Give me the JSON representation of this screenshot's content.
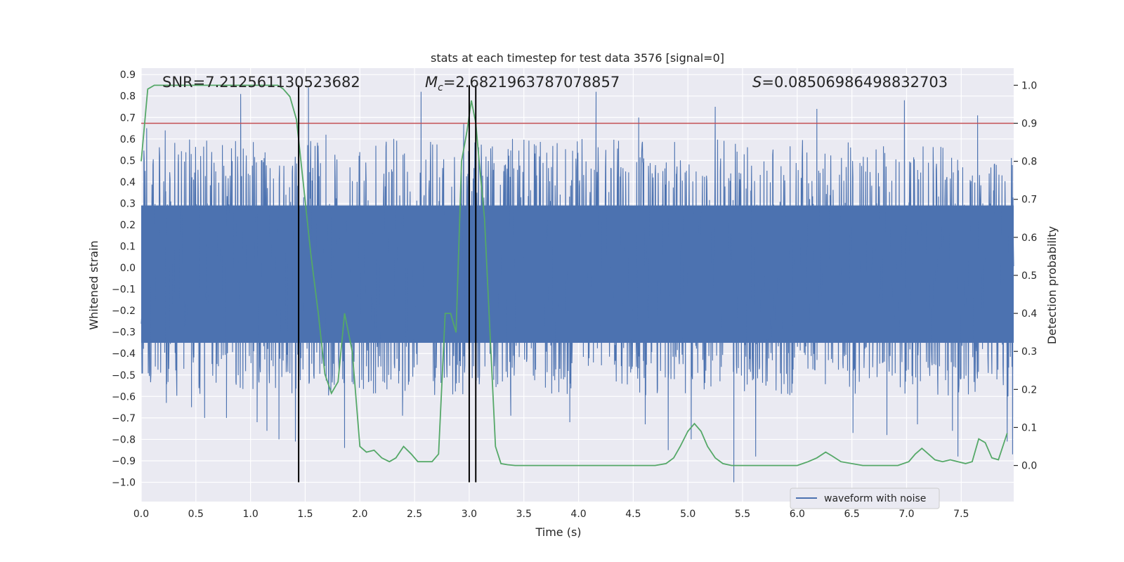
{
  "chart_data": {
    "type": "line",
    "title": "stats at each timestep for test data 3576 [signal=0]",
    "xlabel": "Time (s)",
    "ylabel": "Whitened strain",
    "ylabel_right": "Detection probability",
    "xlim": [
      0.0,
      7.98
    ],
    "ylim": [
      -1.09,
      0.93
    ],
    "ylim_right": [
      -0.095,
      1.045
    ],
    "x_ticks": [
      "0.0",
      "0.5",
      "1.0",
      "1.5",
      "2.0",
      "2.5",
      "3.0",
      "3.5",
      "4.0",
      "4.5",
      "5.0",
      "5.5",
      "6.0",
      "6.5",
      "7.0",
      "7.5"
    ],
    "y_ticks": [
      "0.9",
      "0.8",
      "0.7",
      "0.6",
      "0.5",
      "0.4",
      "0.3",
      "0.2",
      "0.1",
      "0.0",
      "−0.1",
      "−0.2",
      "−0.3",
      "−0.4",
      "−0.5",
      "−0.6",
      "−0.7",
      "−0.8",
      "−0.9",
      "−1.0"
    ],
    "y_ticks_right": [
      "1.0",
      "0.9",
      "0.8",
      "0.7",
      "0.6",
      "0.5",
      "0.4",
      "0.3",
      "0.2",
      "0.1",
      "0.0"
    ],
    "grid": true,
    "legend_position": "lower-right",
    "annotations": {
      "snr": "SNR=7.212561130523682",
      "mc_symbol": "M",
      "mc_sub": "c",
      "mc_value": "=2.6821963787078857",
      "s_symbol": "S",
      "s_value": "=0.08506986498832703"
    },
    "series": [
      {
        "name": "waveform with noise",
        "axis": "left",
        "color": "#4c72b0",
        "style": "dense noise",
        "typical_range": [
          -0.55,
          0.5
        ],
        "spikes": [
          {
            "x": 0.05,
            "y": 0.65
          },
          {
            "x": 0.22,
            "y": 0.64
          },
          {
            "x": 0.23,
            "y": -0.63
          },
          {
            "x": 0.46,
            "y": -0.65
          },
          {
            "x": 0.58,
            "y": -0.7
          },
          {
            "x": 0.78,
            "y": -0.7
          },
          {
            "x": 0.91,
            "y": 0.81
          },
          {
            "x": 1.06,
            "y": -0.72
          },
          {
            "x": 1.15,
            "y": -0.76
          },
          {
            "x": 1.26,
            "y": -0.8
          },
          {
            "x": 1.41,
            "y": -0.81
          },
          {
            "x": 1.53,
            "y": 0.84
          },
          {
            "x": 1.69,
            "y": 0.62
          },
          {
            "x": 1.86,
            "y": -0.84
          },
          {
            "x": 2.31,
            "y": 0.6
          },
          {
            "x": 2.39,
            "y": -0.69
          },
          {
            "x": 2.56,
            "y": 0.82
          },
          {
            "x": 2.95,
            "y": 0.67
          },
          {
            "x": 3.38,
            "y": -0.69
          },
          {
            "x": 3.92,
            "y": -0.72
          },
          {
            "x": 4.16,
            "y": 0.82
          },
          {
            "x": 4.55,
            "y": 0.7
          },
          {
            "x": 4.61,
            "y": -0.73
          },
          {
            "x": 4.82,
            "y": -0.85
          },
          {
            "x": 5.03,
            "y": -0.8
          },
          {
            "x": 5.25,
            "y": 0.75
          },
          {
            "x": 5.42,
            "y": -1.0
          },
          {
            "x": 5.62,
            "y": -0.88
          },
          {
            "x": 6.18,
            "y": 0.74
          },
          {
            "x": 6.51,
            "y": -0.77
          },
          {
            "x": 6.82,
            "y": -0.78
          },
          {
            "x": 6.98,
            "y": 0.78
          },
          {
            "x": 7.1,
            "y": -0.73
          },
          {
            "x": 7.42,
            "y": -0.76
          },
          {
            "x": 7.47,
            "y": -0.88
          },
          {
            "x": 7.65,
            "y": 0.71
          },
          {
            "x": 7.92,
            "y": -0.81
          },
          {
            "x": 7.97,
            "y": -0.87
          }
        ]
      },
      {
        "axis": "right",
        "color": "#55a868",
        "x": [
          0.0,
          0.06,
          0.12,
          0.5,
          0.8,
          1.1,
          1.2,
          1.25,
          1.3,
          1.36,
          1.42,
          1.48,
          1.55,
          1.62,
          1.68,
          1.74,
          1.8,
          1.86,
          1.93,
          2.0,
          2.06,
          2.13,
          2.2,
          2.27,
          2.33,
          2.4,
          2.47,
          2.53,
          2.6,
          2.66,
          2.72,
          2.78,
          2.83,
          2.88,
          2.93,
          2.98,
          3.02,
          3.06,
          3.1,
          3.14,
          3.19,
          3.24,
          3.29,
          3.35,
          3.42,
          3.6,
          4.0,
          4.5,
          4.7,
          4.8,
          4.87,
          4.93,
          5.0,
          5.06,
          5.12,
          5.18,
          5.25,
          5.32,
          5.4,
          5.6,
          6.0,
          6.1,
          6.18,
          6.26,
          6.32,
          6.4,
          6.6,
          6.75,
          6.92,
          7.02,
          7.08,
          7.14,
          7.2,
          7.26,
          7.33,
          7.4,
          7.47,
          7.54,
          7.6,
          7.66,
          7.72,
          7.78,
          7.84,
          7.92
        ],
        "y": [
          0.8,
          0.99,
          1.0,
          1.0,
          1.0,
          1.0,
          1.0,
          1.0,
          0.99,
          0.97,
          0.91,
          0.75,
          0.56,
          0.4,
          0.24,
          0.19,
          0.22,
          0.4,
          0.3,
          0.05,
          0.035,
          0.04,
          0.02,
          0.01,
          0.02,
          0.05,
          0.03,
          0.01,
          0.01,
          0.01,
          0.03,
          0.4,
          0.4,
          0.35,
          0.8,
          0.88,
          0.96,
          0.9,
          0.77,
          0.65,
          0.35,
          0.05,
          0.005,
          0.002,
          0.0,
          0.0,
          0.0,
          0.0,
          0.0,
          0.005,
          0.02,
          0.05,
          0.09,
          0.11,
          0.09,
          0.05,
          0.02,
          0.005,
          0.0,
          0.0,
          0.0,
          0.01,
          0.02,
          0.035,
          0.025,
          0.01,
          0.0,
          0.0,
          0.0,
          0.01,
          0.03,
          0.045,
          0.03,
          0.015,
          0.01,
          0.015,
          0.01,
          0.005,
          0.01,
          0.07,
          0.06,
          0.02,
          0.015,
          0.085
        ]
      },
      {
        "axis": "right",
        "color": "#c44e52",
        "style": "horizontal line",
        "y": 0.9
      }
    ],
    "vertical_lines": [
      1.44,
      3.0,
      3.06
    ],
    "vertical_line_range": [
      -1.0,
      0.85
    ],
    "vertical_line_color": "#000000"
  }
}
